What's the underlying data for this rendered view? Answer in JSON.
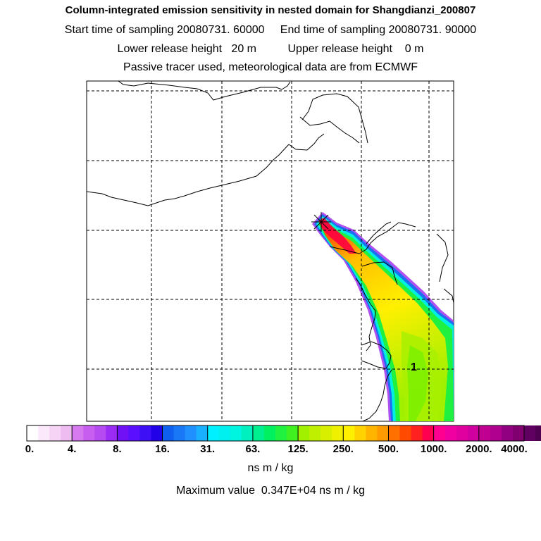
{
  "header": {
    "title": "Column-integrated emission sensitivity in nested domain for Shangdianzi_200807",
    "sampling": "Start time of sampling 20080731. 60000     End time of sampling 20080731. 90000",
    "release": "Lower release height   20 m          Upper release height    0 m",
    "tracer": "Passive tracer used, meteorological data are from ECMWF"
  },
  "map": {
    "marker_label": "1",
    "coastline_color": "#000000",
    "grid_style": "dashed"
  },
  "colorbar": {
    "tick_labels": [
      "0.",
      "4.",
      "8.",
      "16.",
      "31.",
      "63.",
      "125.",
      "250.",
      "500.",
      "1000.",
      "2000.",
      "4000."
    ],
    "colors": [
      "#ffffff",
      "#fbe9fb",
      "#f5d4f5",
      "#eebcf0",
      "#d77af0",
      "#c85ef0",
      "#b54bf0",
      "#9a2cf5",
      "#6f10f5",
      "#5a10ff",
      "#3c0ff5",
      "#2200e8",
      "#1060f0",
      "#1878f5",
      "#2090ff",
      "#18b0ff",
      "#00f0ff",
      "#00f0f0",
      "#00f5e0",
      "#00f0c0",
      "#00f090",
      "#00f060",
      "#20f040",
      "#40f020",
      "#a0f000",
      "#c0f000",
      "#d8f000",
      "#eef000",
      "#fff000",
      "#ffd200",
      "#ffb400",
      "#ff9a00",
      "#ff7000",
      "#ff4a00",
      "#ff2020",
      "#ff0050",
      "#ff0090",
      "#f000a0",
      "#e000a0",
      "#d000a0",
      "#c00090",
      "#b00090",
      "#900080",
      "#800070",
      "#600060",
      "#500050",
      "#400048",
      "#300040"
    ],
    "units": "ns m / kg",
    "max_value_text": "Maximum value  0.347E+04 ns m / kg"
  }
}
